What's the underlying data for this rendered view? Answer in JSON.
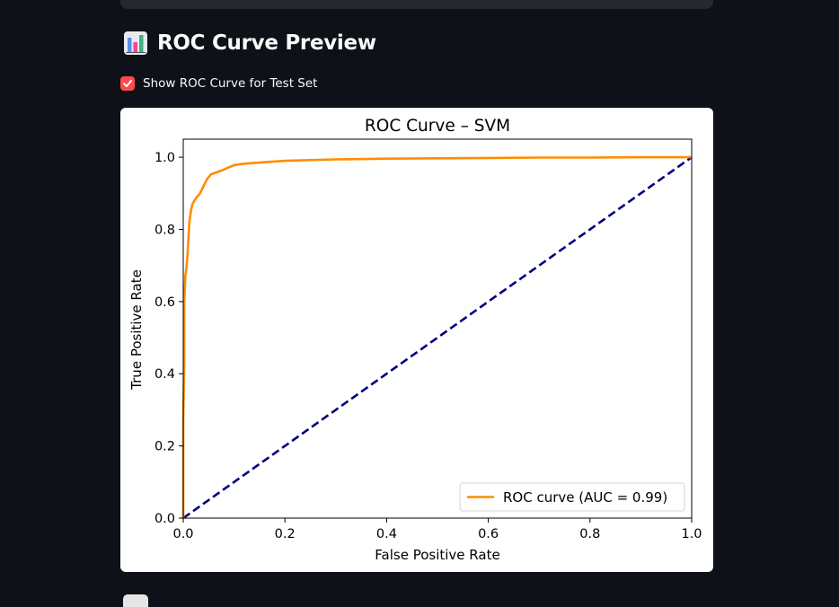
{
  "section": {
    "icon": "bar-chart-icon",
    "title": "ROC Curve Preview"
  },
  "checkbox": {
    "label": "Show ROC Curve for Test Set",
    "checked": true,
    "color": "#ff4b4b"
  },
  "theme": {
    "background": "#0e1117",
    "roc_color": "#ff8c00",
    "diagonal_color": "#000080"
  },
  "chart_data": {
    "type": "line",
    "title": "ROC Curve – SVM",
    "xlabel": "False Positive Rate",
    "ylabel": "True Positive Rate",
    "xlim": [
      0.0,
      1.0
    ],
    "ylim": [
      0.0,
      1.05
    ],
    "xticks": [
      "0.0",
      "0.2",
      "0.4",
      "0.6",
      "0.8",
      "1.0"
    ],
    "yticks": [
      "0.0",
      "0.2",
      "0.4",
      "0.6",
      "0.8",
      "1.0"
    ],
    "legend_position": "lower-right",
    "grid": false,
    "series": [
      {
        "name": "ROC curve (AUC = 0.99)",
        "style": "solid",
        "x": [
          0.0,
          0.0,
          0.002,
          0.002,
          0.004,
          0.006,
          0.008,
          0.01,
          0.012,
          0.015,
          0.018,
          0.022,
          0.027,
          0.033,
          0.04,
          0.047,
          0.055,
          0.065,
          0.075,
          0.09,
          0.1,
          0.12,
          0.15,
          0.2,
          0.3,
          0.4,
          0.5,
          0.6,
          0.7,
          0.8,
          0.9,
          1.0
        ],
        "y": [
          0.0,
          0.27,
          0.43,
          0.6,
          0.67,
          0.69,
          0.72,
          0.77,
          0.82,
          0.85,
          0.87,
          0.88,
          0.89,
          0.9,
          0.92,
          0.94,
          0.953,
          0.958,
          0.963,
          0.972,
          0.978,
          0.982,
          0.985,
          0.99,
          0.994,
          0.996,
          0.997,
          0.998,
          0.999,
          0.999,
          1.0,
          1.0
        ]
      },
      {
        "name": "",
        "style": "dashed",
        "x": [
          0.0,
          1.0
        ],
        "y": [
          0.0,
          1.0
        ]
      }
    ]
  }
}
